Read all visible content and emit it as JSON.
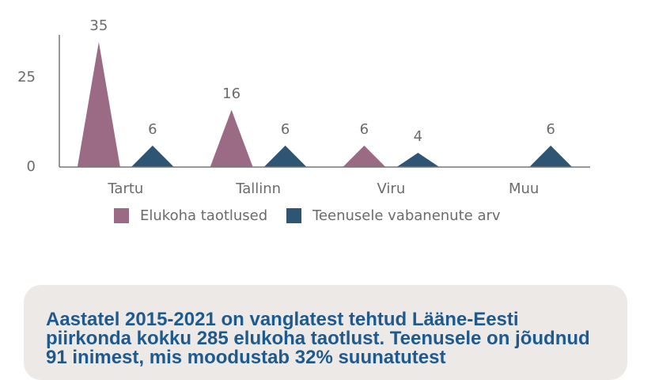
{
  "chart_data": {
    "type": "triangle-bar",
    "categories": [
      "Tartu",
      "Tallinn",
      "Viru",
      "Muu"
    ],
    "series": [
      {
        "name": "Elukoha taotlused",
        "color": "#9b6b86",
        "values": [
          35,
          16,
          6,
          null
        ]
      },
      {
        "name": "Teenusele vabanenute arv",
        "color": "#2f5575",
        "values": [
          6,
          6,
          4,
          6
        ]
      }
    ],
    "ylim": [
      0,
      37
    ],
    "yticks": [
      0,
      25
    ],
    "grid": false
  },
  "callout": {
    "text": "Aastatel 2015-2021 on vanglatest tehtud Lääne-Eesti piirkonda kokku 285 elukoha taotlust. Teenusele on jõudnud 91 inimest, mis moodustab 32% suunatutest"
  }
}
